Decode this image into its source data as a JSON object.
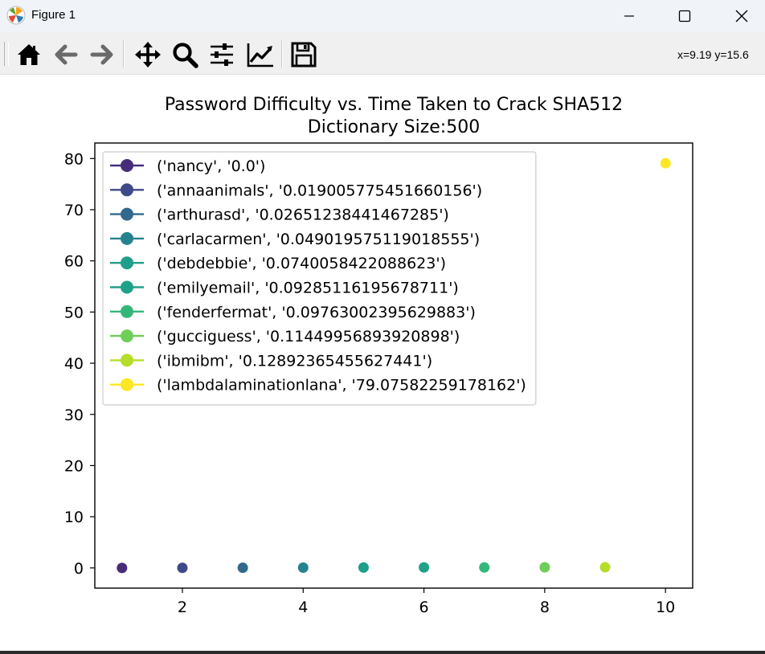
{
  "window": {
    "title": "Figure 1",
    "icon": "matplotlib-logo-icon"
  },
  "toolbar": {
    "buttons": [
      {
        "name": "home-button",
        "icon": "home-icon"
      },
      {
        "name": "back-button",
        "icon": "arrow-left-icon"
      },
      {
        "name": "forward-button",
        "icon": "arrow-right-icon"
      },
      {
        "name": "pan-button",
        "icon": "move-icon"
      },
      {
        "name": "zoom-button",
        "icon": "magnifier-icon"
      },
      {
        "name": "subplots-button",
        "icon": "sliders-icon"
      },
      {
        "name": "edit-axes-button",
        "icon": "line-chart-icon"
      },
      {
        "name": "save-button",
        "icon": "floppy-disk-icon"
      }
    ],
    "coords": "x=9.19 y=15.6"
  },
  "chart_data": {
    "type": "scatter",
    "title": "Password Difficulty vs. Time Taken to Crack SHA512\nDictionary Size:500",
    "xlabel": "",
    "ylabel": "",
    "xlim": [
      0.55,
      10.45
    ],
    "ylim": [
      -3.95,
      83.03
    ],
    "xticks": [
      2,
      4,
      6,
      8,
      10
    ],
    "yticks": [
      0,
      10,
      20,
      30,
      40,
      50,
      60,
      70,
      80
    ],
    "grid": false,
    "legend_position": "upper-left",
    "series": [
      {
        "name": "('nancy', '0.0')",
        "x": 1,
        "y": 0.0,
        "color": "#472c7a"
      },
      {
        "name": "('annaanimals', '0.019005775451660156')",
        "x": 2,
        "y": 0.019005775451660156,
        "color": "#3e4989"
      },
      {
        "name": "('arthurasd', '0.02651238441467285')",
        "x": 3,
        "y": 0.02651238441467285,
        "color": "#31688e"
      },
      {
        "name": "('carlacarmen', '0.049019575119018555')",
        "x": 4,
        "y": 0.049019575119018555,
        "color": "#26828e"
      },
      {
        "name": "('debdebbie', '0.0740058422088623')",
        "x": 5,
        "y": 0.0740058422088623,
        "color": "#1f9e89"
      },
      {
        "name": "('emilyemail', '0.09285116195678711')",
        "x": 6,
        "y": 0.09285116195678711,
        "color": "#1fa187"
      },
      {
        "name": "('fenderfermat', '0.09763002395629883')",
        "x": 7,
        "y": 0.09763002395629883,
        "color": "#35b779"
      },
      {
        "name": "('gucciguess', '0.11449956893920898')",
        "x": 8,
        "y": 0.11449956893920898,
        "color": "#6ece58"
      },
      {
        "name": "('ibmibm', '0.12892365455627441')",
        "x": 9,
        "y": 0.12892365455627441,
        "color": "#b5de2b"
      },
      {
        "name": "('lambdalaminationlana', '79.07582259178162')",
        "x": 10,
        "y": 79.07582259178162,
        "color": "#fde725"
      }
    ]
  }
}
